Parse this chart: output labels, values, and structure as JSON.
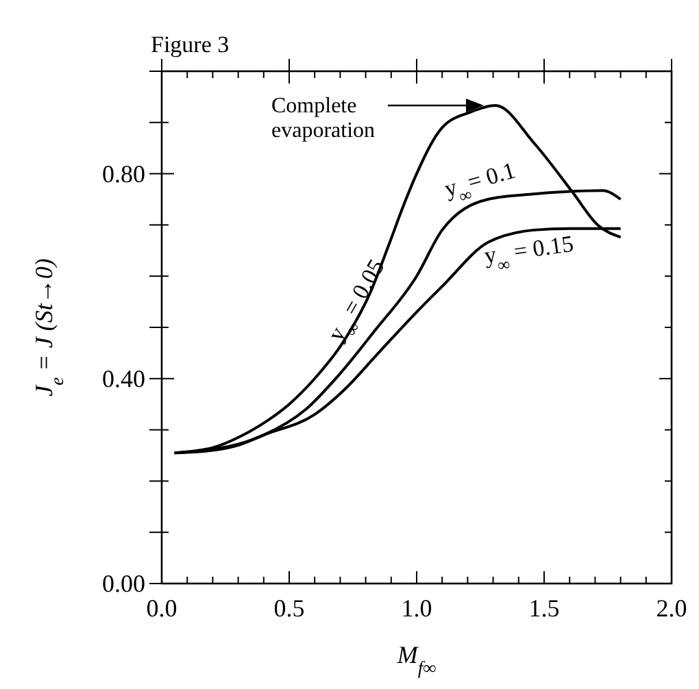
{
  "chart_data": {
    "type": "line",
    "title": "Figure 3",
    "xlabel": "M$_{f∞}$",
    "ylabel": "J$_{e}$ = J (St→0)",
    "xlim": [
      0,
      2
    ],
    "ylim": [
      0,
      1
    ],
    "xticks": [
      {
        "value": 0,
        "label": "0.0"
      },
      {
        "value": 0.1,
        "label": null
      },
      {
        "value": 0.2,
        "label": null
      },
      {
        "value": 0.3,
        "label": null
      },
      {
        "value": 0.4,
        "label": null
      },
      {
        "value": 0.5,
        "label": "0.5"
      },
      {
        "value": 0.6,
        "label": null
      },
      {
        "value": 0.7,
        "label": null
      },
      {
        "value": 0.8,
        "label": null
      },
      {
        "value": 0.9,
        "label": null
      },
      {
        "value": 1,
        "label": "1.0"
      },
      {
        "value": 1.1,
        "label": null
      },
      {
        "value": 1.2,
        "label": null
      },
      {
        "value": 1.3,
        "label": null
      },
      {
        "value": 1.4,
        "label": null
      },
      {
        "value": 1.5,
        "label": "1.5"
      },
      {
        "value": 1.6,
        "label": null
      },
      {
        "value": 1.7,
        "label": null
      },
      {
        "value": 1.8,
        "label": null
      },
      {
        "value": 1.9,
        "label": null
      },
      {
        "value": 2,
        "label": "2.0"
      }
    ],
    "yticks": [
      {
        "value": 0,
        "label": "0.00"
      },
      {
        "value": 0.1,
        "label": null
      },
      {
        "value": 0.2,
        "label": null
      },
      {
        "value": 0.3,
        "label": null
      },
      {
        "value": 0.4,
        "label": "0.40"
      },
      {
        "value": 0.5,
        "label": null
      },
      {
        "value": 0.6,
        "label": null
      },
      {
        "value": 0.7,
        "label": null
      },
      {
        "value": 0.8,
        "label": "0.80"
      },
      {
        "value": 0.9,
        "label": null
      },
      {
        "value": 1,
        "label": null
      }
    ],
    "grid": false,
    "marker": "none",
    "line_style": "solid",
    "series": [
      {
        "name": "y$_{∞}$ = 0.05",
        "color": "#000000",
        "x": [
          0.05,
          0.2,
          0.3,
          0.39,
          0.5,
          0.6,
          0.71,
          0.82,
          0.89,
          0.95,
          1.0,
          1.1,
          1.21,
          1.31,
          1.46,
          1.61,
          1.71,
          1.8
        ],
        "values": [
          0.255,
          0.265,
          0.285,
          0.31,
          0.35,
          0.4,
          0.47,
          0.57,
          0.66,
          0.74,
          0.8,
          0.89,
          0.92,
          0.933,
          0.86,
          0.765,
          0.7,
          0.676
        ]
      },
      {
        "name": "y$_{∞}$= 0.1",
        "color": "#000000",
        "x": [
          0.05,
          0.2,
          0.3,
          0.4,
          0.565,
          0.7,
          0.83,
          1.0,
          1.1,
          1.28,
          1.45,
          1.59,
          1.73,
          1.8
        ],
        "values": [
          0.255,
          0.262,
          0.272,
          0.29,
          0.34,
          0.41,
          0.49,
          0.6,
          0.69,
          0.75,
          0.76,
          0.765,
          0.767,
          0.75
        ]
      },
      {
        "name": "y$_{∞}$ = 0.15",
        "color": "#000000",
        "x": [
          0.05,
          0.2,
          0.3,
          0.4,
          0.6,
          0.72,
          0.85,
          1.0,
          1.1,
          1.28,
          1.46,
          1.6,
          1.8
        ],
        "values": [
          0.255,
          0.26,
          0.27,
          0.29,
          0.33,
          0.38,
          0.45,
          0.53,
          0.58,
          0.666,
          0.69,
          0.693,
          0.693
        ]
      }
    ],
    "annotations": [
      "Complete evaporation"
    ]
  }
}
